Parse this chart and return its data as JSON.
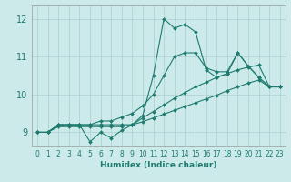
{
  "xlabel": "Humidex (Indice chaleur)",
  "bg_color": "#cceaea",
  "grid_color": "#aacece",
  "line_color": "#1e7b70",
  "xlim": [
    -0.5,
    23.5
  ],
  "ylim": [
    8.65,
    12.35
  ],
  "xticks": [
    0,
    1,
    2,
    3,
    4,
    5,
    6,
    7,
    8,
    9,
    10,
    11,
    12,
    13,
    14,
    15,
    16,
    17,
    18,
    19,
    20,
    21,
    22,
    23
  ],
  "yticks": [
    9,
    10,
    11,
    12
  ],
  "series": [
    [
      9.0,
      9.0,
      9.2,
      9.2,
      9.2,
      8.75,
      9.0,
      8.85,
      9.05,
      9.2,
      9.45,
      10.5,
      12.0,
      11.75,
      11.85,
      11.65,
      10.65,
      10.45,
      10.55,
      11.1,
      10.75,
      10.45,
      10.2,
      10.2
    ],
    [
      9.0,
      9.0,
      9.2,
      9.2,
      9.2,
      9.2,
      9.2,
      9.2,
      9.2,
      9.2,
      9.38,
      9.55,
      9.72,
      9.9,
      10.05,
      10.2,
      10.32,
      10.45,
      10.55,
      10.65,
      10.72,
      10.78,
      10.2,
      10.2
    ],
    [
      9.0,
      9.0,
      9.2,
      9.2,
      9.2,
      9.2,
      9.3,
      9.3,
      9.4,
      9.5,
      9.7,
      10.0,
      10.5,
      11.0,
      11.1,
      11.1,
      10.7,
      10.6,
      10.6,
      11.1,
      10.75,
      10.45,
      10.2,
      10.2
    ],
    [
      9.0,
      9.0,
      9.15,
      9.15,
      9.15,
      9.15,
      9.15,
      9.15,
      9.15,
      9.2,
      9.28,
      9.38,
      9.48,
      9.58,
      9.68,
      9.78,
      9.88,
      9.98,
      10.1,
      10.2,
      10.3,
      10.38,
      10.2,
      10.2
    ]
  ]
}
